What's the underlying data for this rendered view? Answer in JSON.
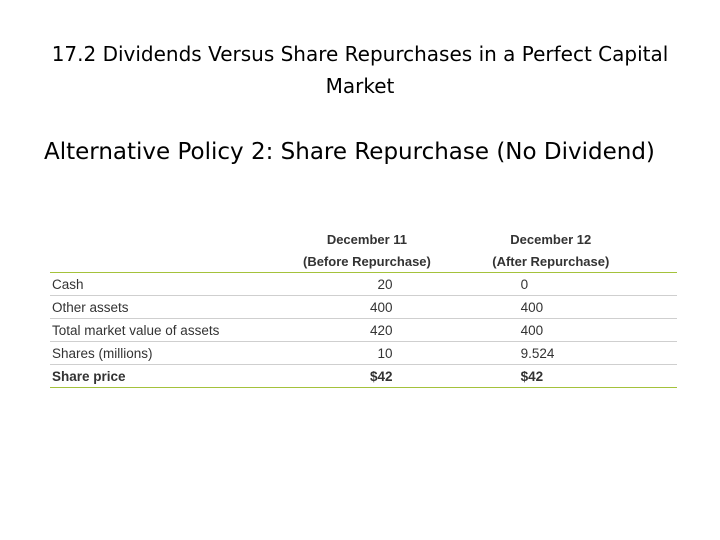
{
  "slide": {
    "title": "17.2 Dividends Versus Share Repurchases in a Perfect Capital Market",
    "subtitle": "Alternative Policy 2: Share Repurchase (No Dividend)"
  },
  "table": {
    "columns": [
      {
        "line1": "December 11",
        "line2": "(Before Repurchase)"
      },
      {
        "line1": "December 12",
        "line2": "(After Repurchase)"
      }
    ],
    "rows": [
      {
        "label": "Cash",
        "before": "20",
        "after": "0"
      },
      {
        "label": "Other assets",
        "before": "400",
        "after": "400"
      },
      {
        "label": "Total market value of assets",
        "before": "420",
        "after": "400"
      },
      {
        "label": "Shares (millions)",
        "before": "10",
        "after": "9.524"
      },
      {
        "label": "Share price",
        "before": "$42",
        "after": "$42"
      }
    ]
  },
  "colors": {
    "accent_rule": "#a4c23b",
    "row_rule": "#cfcfcf",
    "table_text": "#333333"
  }
}
